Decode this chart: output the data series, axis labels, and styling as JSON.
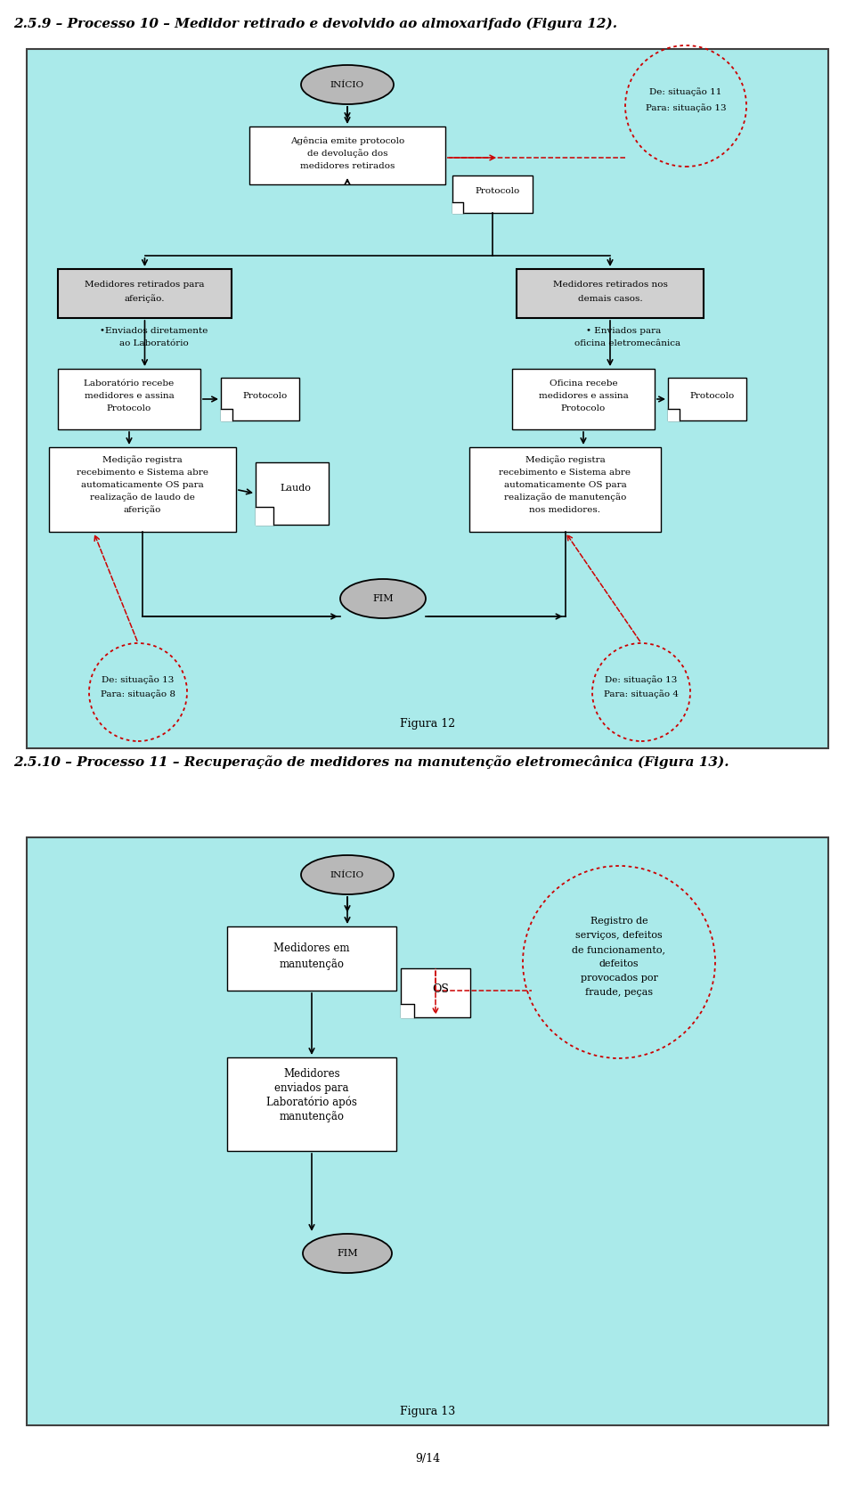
{
  "title1": "2.5.9 – Processo 10 – Medidor retirado e devolvido ao almoxarifado (Figura 12).",
  "title2": "2.5.10 – Processo 11 – Recuperação de medidores na manutenção eletromecânica (Figura 13).",
  "figura12": "Figura 12",
  "figura13": "Figura 13",
  "page": "9/14",
  "bg_outer": "#ffffff",
  "bg_diagram": "#aaeaea",
  "dashed_circle_color": "#cc0000"
}
